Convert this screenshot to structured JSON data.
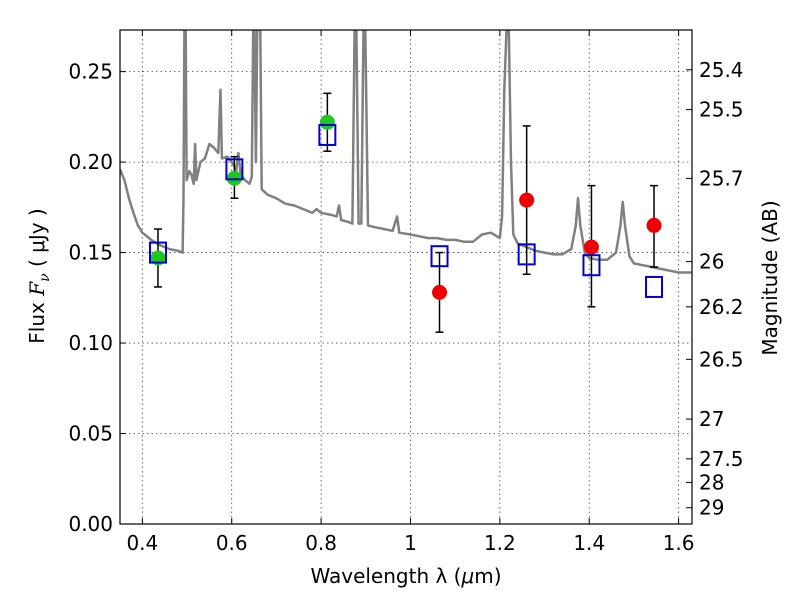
{
  "chart_data": {
    "type": "scatter",
    "xlabel_text": "Wavelength  λ (",
    "xlabel_unit": "μ",
    "xlabel_tail": "m)",
    "ylabel_text": "Flux  ",
    "ylabel_symbol": "F",
    "ylabel_sub": "ν",
    "ylabel_unit": "  ( μJy )",
    "y2label": "Magnitude (AB)",
    "xlim": [
      0.35,
      1.63
    ],
    "ylim": [
      0.0,
      0.273
    ],
    "xticks": [
      0.4,
      0.6,
      0.8,
      1.0,
      1.2,
      1.4,
      1.6
    ],
    "xtick_labels": [
      "0.4",
      "0.6",
      "0.8",
      "1",
      "1.2",
      "1.4",
      "1.6"
    ],
    "yticks": [
      0.0,
      0.05,
      0.1,
      0.15,
      0.2,
      0.25
    ],
    "ytick_labels": [
      "0.00",
      "0.05",
      "0.10",
      "0.15",
      "0.20",
      "0.25"
    ],
    "mag_ticks": [
      {
        "label": "25.4",
        "flux": 0.251
      },
      {
        "label": "25.5",
        "flux": 0.229
      },
      {
        "label": "25.7",
        "flux": 0.191
      },
      {
        "label": "26",
        "flux": 0.145
      },
      {
        "label": "26.2",
        "flux": 0.12
      },
      {
        "label": "26.5",
        "flux": 0.091
      },
      {
        "label": "27",
        "flux": 0.058
      },
      {
        "label": "27.5",
        "flux": 0.036
      },
      {
        "label": "28",
        "flux": 0.023
      },
      {
        "label": "29",
        "flux": 0.009
      }
    ],
    "grid": true,
    "colors": {
      "model": "#808080",
      "green": "#1ec81e",
      "red": "#ee0000",
      "box": "#0000cc",
      "errorbar": "#000000"
    },
    "series": [
      {
        "kind": "green-points",
        "points": [
          {
            "x": 0.435,
            "y": 0.147,
            "lo": 0.131,
            "hi": 0.163
          },
          {
            "x": 0.606,
            "y": 0.191,
            "lo": 0.18,
            "hi": 0.203
          },
          {
            "x": 0.814,
            "y": 0.222,
            "lo": 0.206,
            "hi": 0.238
          }
        ]
      },
      {
        "kind": "red-points",
        "points": [
          {
            "x": 1.065,
            "y": 0.128,
            "lo": 0.106,
            "hi": 0.15
          },
          {
            "x": 1.26,
            "y": 0.179,
            "lo": 0.138,
            "hi": 0.22
          },
          {
            "x": 1.405,
            "y": 0.153,
            "lo": 0.12,
            "hi": 0.187
          },
          {
            "x": 1.545,
            "y": 0.165,
            "lo": 0.142,
            "hi": 0.187
          }
        ]
      },
      {
        "kind": "model-boxes",
        "points": [
          {
            "x": 0.435,
            "y": 0.15
          },
          {
            "x": 0.606,
            "y": 0.196
          },
          {
            "x": 0.814,
            "y": 0.215
          },
          {
            "x": 1.065,
            "y": 0.148
          },
          {
            "x": 1.26,
            "y": 0.149
          },
          {
            "x": 1.405,
            "y": 0.143
          },
          {
            "x": 1.545,
            "y": 0.131
          }
        ]
      },
      {
        "kind": "model-spectrum",
        "points": [
          [
            0.35,
            0.196
          ],
          [
            0.36,
            0.19
          ],
          [
            0.37,
            0.18
          ],
          [
            0.38,
            0.172
          ],
          [
            0.39,
            0.165
          ],
          [
            0.4,
            0.161
          ],
          [
            0.42,
            0.157
          ],
          [
            0.44,
            0.154
          ],
          [
            0.46,
            0.152
          ],
          [
            0.48,
            0.151
          ],
          [
            0.49,
            0.15
          ],
          [
            0.492,
            0.18
          ],
          [
            0.494,
            0.273
          ],
          [
            0.497,
            0.273
          ],
          [
            0.499,
            0.19
          ],
          [
            0.505,
            0.195
          ],
          [
            0.51,
            0.193
          ],
          [
            0.515,
            0.188
          ],
          [
            0.518,
            0.21
          ],
          [
            0.521,
            0.19
          ],
          [
            0.53,
            0.2
          ],
          [
            0.54,
            0.202
          ],
          [
            0.55,
            0.21
          ],
          [
            0.56,
            0.208
          ],
          [
            0.57,
            0.205
          ],
          [
            0.575,
            0.24
          ],
          [
            0.578,
            0.202
          ],
          [
            0.59,
            0.203
          ],
          [
            0.6,
            0.2
          ],
          [
            0.605,
            0.198
          ],
          [
            0.61,
            0.195
          ],
          [
            0.615,
            0.205
          ],
          [
            0.62,
            0.193
          ],
          [
            0.63,
            0.19
          ],
          [
            0.64,
            0.188
          ],
          [
            0.645,
            0.192
          ],
          [
            0.648,
            0.273
          ],
          [
            0.651,
            0.273
          ],
          [
            0.654,
            0.2
          ],
          [
            0.657,
            0.273
          ],
          [
            0.66,
            0.273
          ],
          [
            0.664,
            0.273
          ],
          [
            0.667,
            0.185
          ],
          [
            0.68,
            0.182
          ],
          [
            0.7,
            0.18
          ],
          [
            0.72,
            0.177
          ],
          [
            0.74,
            0.176
          ],
          [
            0.76,
            0.174
          ],
          [
            0.78,
            0.172
          ],
          [
            0.79,
            0.174
          ],
          [
            0.8,
            0.172
          ],
          [
            0.82,
            0.171
          ],
          [
            0.835,
            0.17
          ],
          [
            0.84,
            0.176
          ],
          [
            0.845,
            0.168
          ],
          [
            0.86,
            0.167
          ],
          [
            0.87,
            0.166
          ],
          [
            0.875,
            0.273
          ],
          [
            0.879,
            0.273
          ],
          [
            0.884,
            0.166
          ],
          [
            0.89,
            0.166
          ],
          [
            0.895,
            0.273
          ],
          [
            0.899,
            0.273
          ],
          [
            0.905,
            0.165
          ],
          [
            0.92,
            0.164
          ],
          [
            0.94,
            0.163
          ],
          [
            0.96,
            0.162
          ],
          [
            0.97,
            0.17
          ],
          [
            0.975,
            0.161
          ],
          [
            1.0,
            0.16
          ],
          [
            1.02,
            0.159
          ],
          [
            1.04,
            0.158
          ],
          [
            1.06,
            0.158
          ],
          [
            1.08,
            0.157
          ],
          [
            1.1,
            0.157
          ],
          [
            1.12,
            0.156
          ],
          [
            1.14,
            0.156
          ],
          [
            1.16,
            0.16
          ],
          [
            1.18,
            0.161
          ],
          [
            1.2,
            0.158
          ],
          [
            1.205,
            0.17
          ],
          [
            1.21,
            0.24
          ],
          [
            1.215,
            0.273
          ],
          [
            1.22,
            0.273
          ],
          [
            1.225,
            0.2
          ],
          [
            1.23,
            0.16
          ],
          [
            1.24,
            0.155
          ],
          [
            1.26,
            0.153
          ],
          [
            1.28,
            0.151
          ],
          [
            1.3,
            0.15
          ],
          [
            1.32,
            0.149
          ],
          [
            1.34,
            0.149
          ],
          [
            1.36,
            0.152
          ],
          [
            1.37,
            0.165
          ],
          [
            1.375,
            0.18
          ],
          [
            1.38,
            0.165
          ],
          [
            1.39,
            0.15
          ],
          [
            1.4,
            0.147
          ],
          [
            1.42,
            0.146
          ],
          [
            1.44,
            0.146
          ],
          [
            1.46,
            0.15
          ],
          [
            1.47,
            0.165
          ],
          [
            1.475,
            0.178
          ],
          [
            1.48,
            0.165
          ],
          [
            1.49,
            0.148
          ],
          [
            1.5,
            0.144
          ],
          [
            1.52,
            0.143
          ],
          [
            1.54,
            0.142
          ],
          [
            1.56,
            0.141
          ],
          [
            1.58,
            0.14
          ],
          [
            1.6,
            0.139
          ],
          [
            1.63,
            0.139
          ]
        ]
      }
    ]
  }
}
